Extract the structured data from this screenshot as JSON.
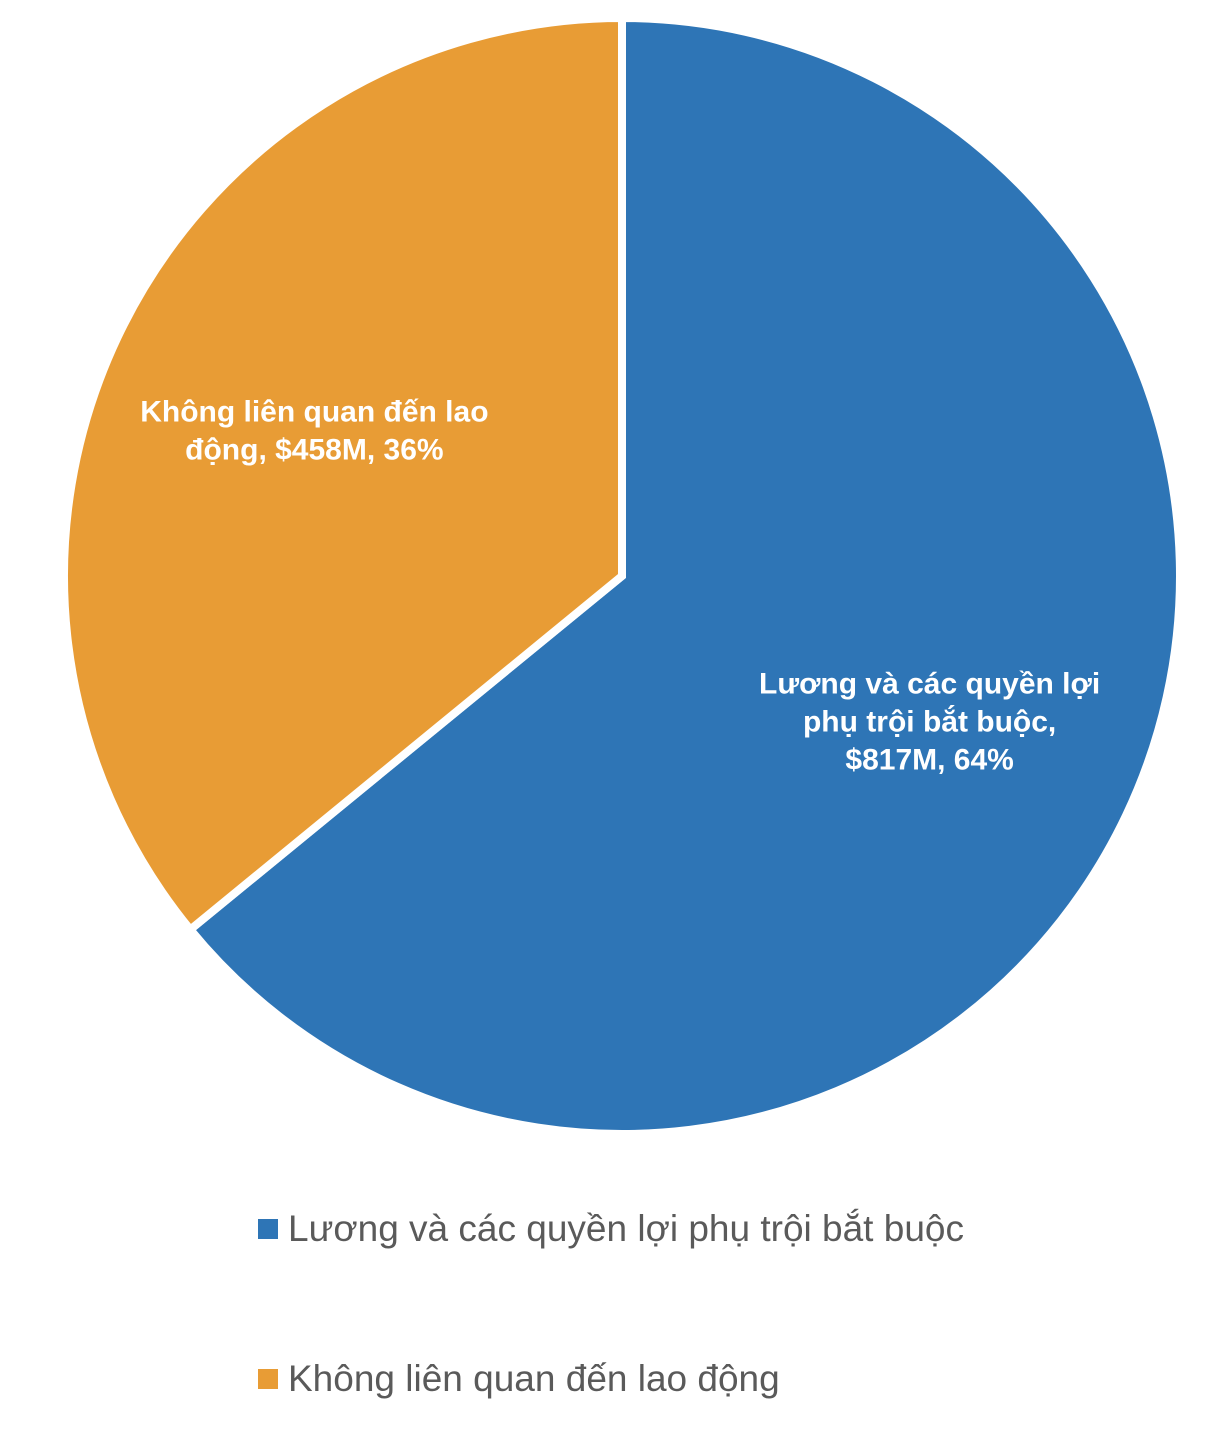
{
  "chart_data": {
    "type": "pie",
    "title": "",
    "slices": [
      {
        "label": "Lương và các quyền lợi phụ trội bắt buộc",
        "value": 817,
        "percent": 64,
        "color": "#2e75b6",
        "data_label_lines": [
          "Lương và các quyền lợi",
          "phụ trội bắt buộc,",
          "$817M, 64%"
        ]
      },
      {
        "label": "Không liên quan đến lao động",
        "value": 458,
        "percent": 36,
        "color": "#e89c35",
        "data_label_lines": [
          "Không liên quan đến lao",
          "động,  $458M, 36%"
        ]
      }
    ],
    "start_angle_deg": 0,
    "direction": "clockwise",
    "legend": {
      "position": "bottom",
      "items": [
        "Lương và các quyền lợi phụ trội bắt buộc",
        "Không liên quan đến lao động"
      ]
    }
  }
}
